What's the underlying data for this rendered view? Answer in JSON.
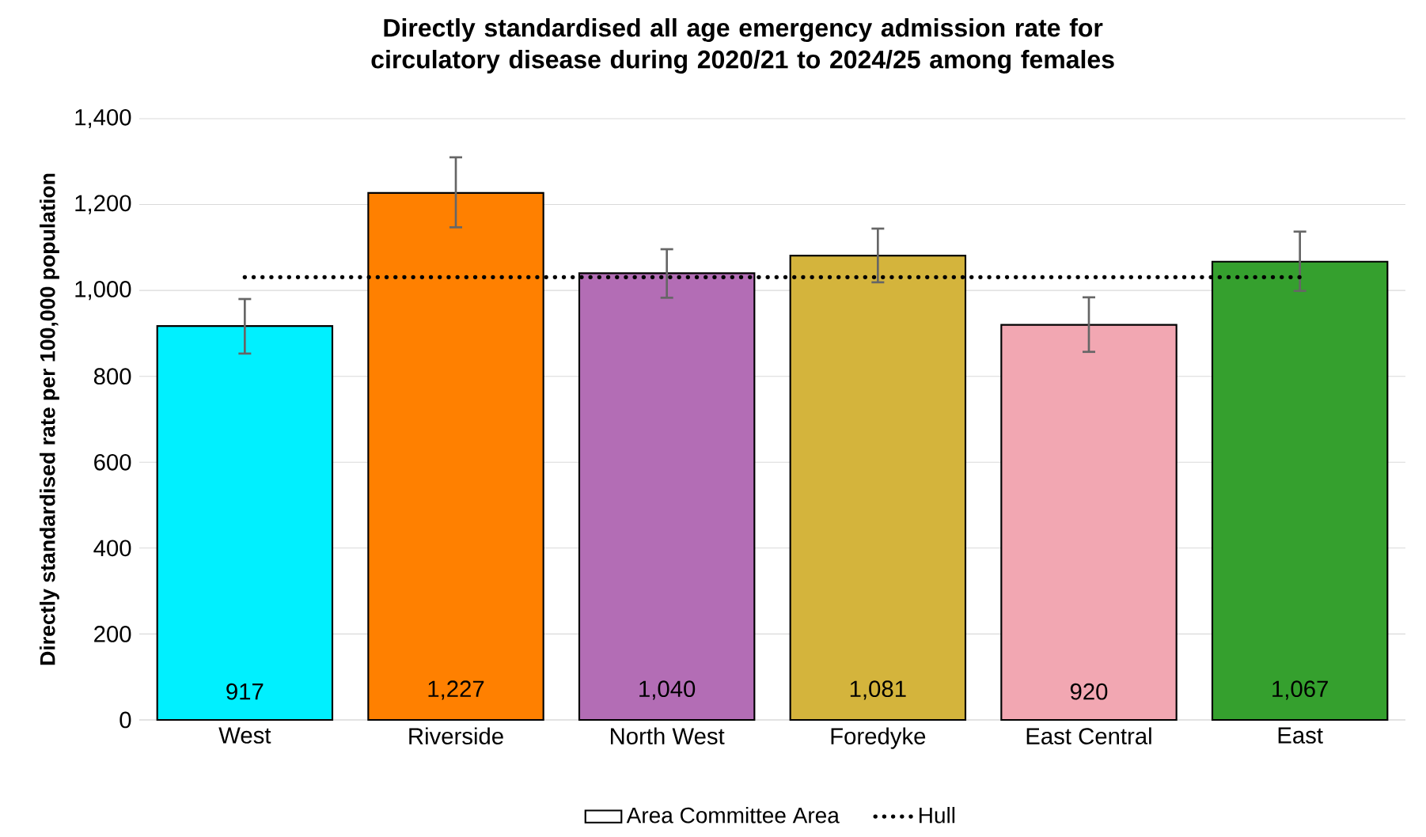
{
  "chart_data": {
    "type": "bar",
    "title": "Directly standardised all age emergency admission rate for circulatory disease during 2020/21 to 2024/25 among females",
    "ylabel": "Directly standardised rate per 100,000 population",
    "categories": [
      "West",
      "Riverside",
      "North West",
      "Foredyke",
      "East Central",
      "East"
    ],
    "series": [
      {
        "name": "Area Committee Area",
        "colors": [
          "#00f0ff",
          "#ff8000",
          "#b36db5",
          "#d4b43c",
          "#f2a7b2",
          "#35a02e"
        ],
        "values": [
          917,
          1227,
          1040,
          1081,
          920,
          1067
        ],
        "value_labels": [
          "917",
          "1,227",
          "1,040",
          "1,081",
          "920",
          "1,067"
        ],
        "errors": [
          [
            853,
            980
          ],
          [
            1147,
            1310
          ],
          [
            983,
            1096
          ],
          [
            1019,
            1144
          ],
          [
            857,
            984
          ],
          [
            999,
            1137
          ]
        ]
      }
    ],
    "ref_lines": [
      {
        "axis": "y",
        "value": 1031,
        "label": "Hull",
        "line_style": "dotted",
        "color": "#000000"
      }
    ],
    "ylim": [
      0,
      1400
    ],
    "yticks": [
      {
        "value": 0,
        "label": "0"
      },
      {
        "value": 200,
        "label": "200"
      },
      {
        "value": 400,
        "label": "400"
      },
      {
        "value": 600,
        "label": "600"
      },
      {
        "value": 800,
        "label": "800"
      },
      {
        "value": 1000,
        "label": "1,000"
      },
      {
        "value": 1200,
        "label": "1,200"
      },
      {
        "value": 1400,
        "label": "1,400"
      }
    ],
    "grid": "y",
    "legend": "bottom"
  }
}
